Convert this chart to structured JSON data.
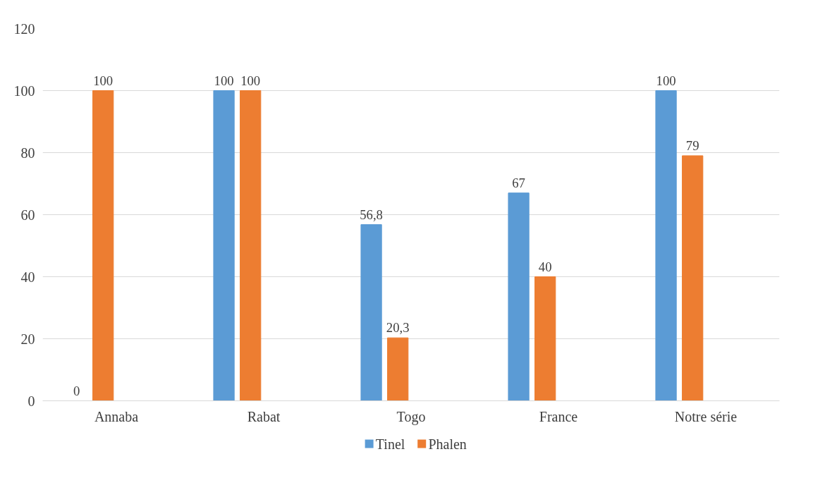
{
  "chart_data": {
    "type": "bar",
    "categories": [
      "Annaba",
      "Rabat",
      "Togo",
      "France",
      "Notre série"
    ],
    "series": [
      {
        "name": "Tinel",
        "color": "#5b9bd5",
        "values": [
          0,
          100,
          56.8,
          67,
          100
        ],
        "value_labels": [
          "0",
          "100",
          "56,8",
          "67",
          "100"
        ]
      },
      {
        "name": "Phalen",
        "color": "#ed7d31",
        "values": [
          100,
          100,
          20.3,
          40,
          79
        ],
        "value_labels": [
          "100",
          "100",
          "20,3",
          "40",
          "79"
        ]
      }
    ],
    "ylim": [
      0,
      120
    ],
    "yticks": [
      0,
      20,
      40,
      60,
      80,
      100,
      120
    ],
    "grid": "y",
    "legend": "bottom"
  }
}
